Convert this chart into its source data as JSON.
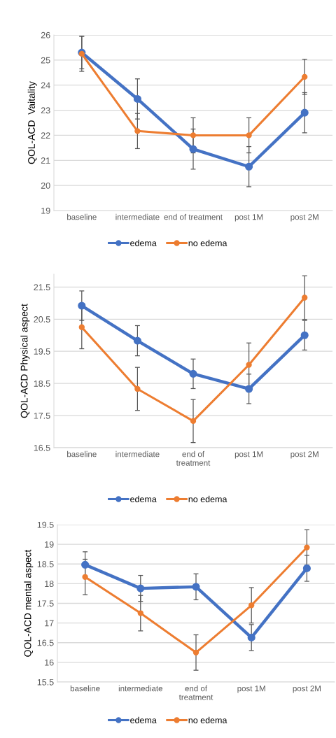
{
  "chart_data": [
    {
      "type": "line",
      "ylabel": "QOL-ACD  Vaitality",
      "categories": [
        "baseline",
        "intermediate",
        "end of treatment",
        "post 1M",
        "post 2M"
      ],
      "ylim": [
        19,
        26
      ],
      "yticks": [
        19,
        20,
        21,
        22,
        23,
        24,
        25,
        26
      ],
      "grid": "y",
      "legend": "bottom",
      "marker": "circle",
      "line_style": "solid",
      "series": [
        {
          "name": "edema",
          "color": "#4472c4",
          "values": [
            25.3,
            23.45,
            21.45,
            20.75,
            22.9
          ],
          "errors": [
            0.65,
            0.8,
            0.8,
            0.8,
            0.8
          ]
        },
        {
          "name": "no edema",
          "color": "#ed7d31",
          "values": [
            25.25,
            22.17,
            22.0,
            22.0,
            24.33
          ],
          "errors": [
            0.7,
            0.7,
            0.7,
            0.7,
            0.7
          ]
        }
      ]
    },
    {
      "type": "line",
      "ylabel": "QOL-ACD Physical aspect",
      "categories": [
        "baseline",
        "intermediate",
        "end of\ntreatment",
        "post 1M",
        "post 2M"
      ],
      "ylim": [
        16.5,
        21.9
      ],
      "yticks": [
        16.5,
        17.5,
        18.5,
        19.5,
        20.5,
        21.5
      ],
      "grid": "y",
      "legend": "bottom",
      "marker": "circle",
      "line_style": "solid",
      "series": [
        {
          "name": "edema",
          "color": "#4472c4",
          "values": [
            20.92,
            19.83,
            18.8,
            18.33,
            20.0
          ],
          "errors": [
            0.46,
            0.47,
            0.46,
            0.46,
            0.46
          ]
        },
        {
          "name": "no edema",
          "color": "#ed7d31",
          "values": [
            20.25,
            18.33,
            17.33,
            19.08,
            21.17
          ],
          "errors": [
            0.67,
            0.67,
            0.67,
            0.68,
            0.68
          ]
        }
      ]
    },
    {
      "type": "line",
      "ylabel": "QOL-ACD mental aspect",
      "categories": [
        "baseline",
        "intermediate",
        "end of\ntreatment",
        "post 1M",
        "post 2M"
      ],
      "ylim": [
        15.5,
        19.5
      ],
      "yticks": [
        15.5,
        16,
        16.5,
        17,
        17.5,
        18,
        18.5,
        19,
        19.5
      ],
      "grid": "y",
      "legend": "bottom",
      "marker": "circle",
      "line_style": "solid",
      "series": [
        {
          "name": "edema",
          "color": "#4472c4",
          "values": [
            18.48,
            17.88,
            17.92,
            16.63,
            18.39
          ],
          "errors": [
            0.33,
            0.33,
            0.33,
            0.33,
            0.33
          ]
        },
        {
          "name": "no edema",
          "color": "#ed7d31",
          "values": [
            18.17,
            17.25,
            16.25,
            17.45,
            18.92
          ],
          "errors": [
            0.45,
            0.45,
            0.45,
            0.45,
            0.45
          ]
        }
      ]
    }
  ]
}
